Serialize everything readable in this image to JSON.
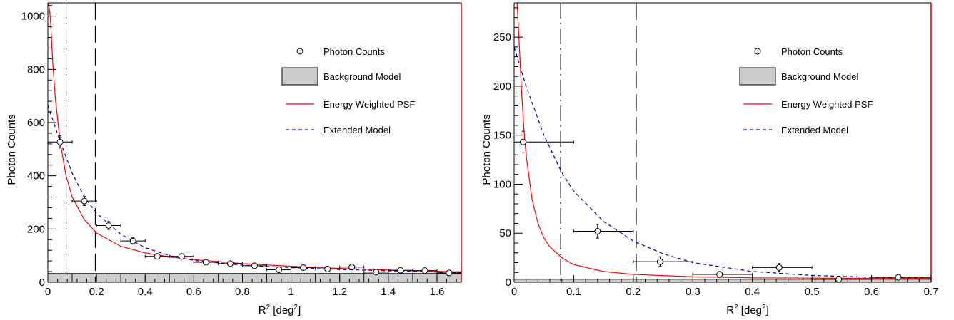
{
  "chart_data": [
    {
      "type": "scatter",
      "xlabel_base": "R",
      "xlabel_sup": "2",
      "xlabel_mid": " [deg",
      "xlabel_sup2": "2",
      "xlabel_end": "]",
      "ylabel": "Photon Counts",
      "xlim": [
        0,
        1.7
      ],
      "ylim": [
        0,
        1050
      ],
      "xticks": [
        0,
        0.2,
        0.4,
        0.6,
        0.8,
        1,
        1.2,
        1.4,
        1.6
      ],
      "xtick_labels": [
        "0",
        "0.2",
        "0.4",
        "0.6",
        "0.8",
        "1",
        "1.2",
        "1.4",
        "1.6"
      ],
      "yticks": [
        0,
        200,
        400,
        600,
        800,
        1000
      ],
      "ytick_labels": [
        "0",
        "200",
        "400",
        "600",
        "800",
        "1000"
      ],
      "legend": {
        "placement": "top-right",
        "entries": [
          "Photon Counts",
          "Background Model",
          "Energy Weighted PSF",
          "Extended Model"
        ]
      },
      "vlines": [
        {
          "x": 0.075,
          "style": "dash-dot"
        },
        {
          "x": 0.195,
          "style": "long-dash"
        }
      ],
      "photon_counts": [
        {
          "x": 0.05,
          "y": 527,
          "xerr": 0.05,
          "yerr": 23
        },
        {
          "x": 0.15,
          "y": 305,
          "xerr": 0.05,
          "yerr": 17
        },
        {
          "x": 0.25,
          "y": 213,
          "xerr": 0.05,
          "yerr": 15
        },
        {
          "x": 0.35,
          "y": 155,
          "xerr": 0.05,
          "yerr": 12
        },
        {
          "x": 0.45,
          "y": 97,
          "xerr": 0.05,
          "yerr": 10
        },
        {
          "x": 0.55,
          "y": 97,
          "xerr": 0.05,
          "yerr": 10
        },
        {
          "x": 0.65,
          "y": 75,
          "xerr": 0.05,
          "yerr": 9
        },
        {
          "x": 0.75,
          "y": 70,
          "xerr": 0.05,
          "yerr": 8
        },
        {
          "x": 0.85,
          "y": 62,
          "xerr": 0.05,
          "yerr": 8
        },
        {
          "x": 0.95,
          "y": 47,
          "xerr": 0.05,
          "yerr": 7
        },
        {
          "x": 1.05,
          "y": 55,
          "xerr": 0.05,
          "yerr": 7
        },
        {
          "x": 1.15,
          "y": 50,
          "xerr": 0.05,
          "yerr": 7
        },
        {
          "x": 1.25,
          "y": 57,
          "xerr": 0.05,
          "yerr": 8
        },
        {
          "x": 1.35,
          "y": 38,
          "xerr": 0.05,
          "yerr": 6
        },
        {
          "x": 1.45,
          "y": 45,
          "xerr": 0.05,
          "yerr": 7
        },
        {
          "x": 1.55,
          "y": 44,
          "xerr": 0.05,
          "yerr": 7
        },
        {
          "x": 1.65,
          "y": 35,
          "xerr": 0.05,
          "yerr": 6
        }
      ],
      "background_model": {
        "bin_edges": [
          0,
          0.1,
          0.2,
          0.3,
          0.4,
          0.5,
          0.6,
          0.7,
          0.8,
          0.9,
          1.0,
          1.1,
          1.2,
          1.3,
          1.4,
          1.5,
          1.6,
          1.7
        ],
        "values": [
          33,
          33,
          33,
          33,
          33,
          33,
          33,
          33,
          33,
          33,
          33,
          33,
          33,
          33,
          33,
          33,
          33
        ]
      },
      "energy_weighted_psf": {
        "x": [
          0.003,
          0.01,
          0.02,
          0.03,
          0.05,
          0.075,
          0.1,
          0.15,
          0.2,
          0.3,
          0.4,
          0.5,
          0.6,
          0.8,
          1.0,
          1.2,
          1.4,
          1.6,
          1.7
        ],
        "y": [
          1050,
          1000,
          830,
          700,
          530,
          400,
          320,
          235,
          185,
          135,
          110,
          95,
          85,
          70,
          60,
          52,
          46,
          41,
          39
        ]
      },
      "extended_model": {
        "x": [
          0,
          0.05,
          0.1,
          0.15,
          0.2,
          0.3,
          0.4,
          0.5,
          0.6,
          0.8,
          1.0,
          1.2,
          1.4,
          1.6,
          1.7
        ],
        "y": [
          665,
          530,
          410,
          320,
          260,
          180,
          130,
          100,
          82,
          64,
          55,
          48,
          43,
          38,
          36
        ]
      }
    },
    {
      "type": "scatter",
      "xlabel_base": "R",
      "xlabel_sup": "2",
      "xlabel_mid": " [deg",
      "xlabel_sup2": "2",
      "xlabel_end": "]",
      "ylabel": "Photon Counts",
      "xlim": [
        0,
        0.7
      ],
      "ylim": [
        0,
        285
      ],
      "xticks": [
        0,
        0.1,
        0.2,
        0.3,
        0.4,
        0.5,
        0.6,
        0.7
      ],
      "xtick_labels": [
        "0",
        "0.1",
        "0.2",
        "0.3",
        "0.4",
        "0.5",
        "0.6",
        "0.7"
      ],
      "yticks": [
        0,
        50,
        100,
        150,
        200,
        250
      ],
      "ytick_labels": [
        "0",
        "50",
        "100",
        "150",
        "200",
        "250"
      ],
      "legend": {
        "placement": "top-right",
        "entries": [
          "Photon Counts",
          "Background Model",
          "Energy Weighted PSF",
          "Extended Model"
        ]
      },
      "vlines": [
        {
          "x": 0.078,
          "style": "dash-dot"
        },
        {
          "x": 0.205,
          "style": "long-dash"
        }
      ],
      "photon_counts": [
        {
          "x": 0.015,
          "y": 143,
          "xerr_lo": 0.015,
          "xerr_hi": 0.085,
          "yerr": 11
        },
        {
          "x": 0.14,
          "y": 52,
          "xerr_lo": 0.04,
          "xerr_hi": 0.06,
          "yerr": 7
        },
        {
          "x": 0.245,
          "y": 21,
          "xerr_lo": 0.045,
          "xerr_hi": 0.055,
          "yerr": 5
        },
        {
          "x": 0.345,
          "y": 8,
          "xerr_lo": 0.045,
          "xerr_hi": 0.055,
          "yerr": 3
        },
        {
          "x": 0.445,
          "y": 15,
          "xerr_lo": 0.045,
          "xerr_hi": 0.055,
          "yerr": 4
        },
        {
          "x": 0.545,
          "y": 3,
          "xerr_lo": 0.045,
          "xerr_hi": 0.055,
          "yerr": 2
        },
        {
          "x": 0.645,
          "y": 5,
          "xerr_lo": 0.045,
          "xerr_hi": 0.055,
          "yerr": 2
        }
      ],
      "background_model": {
        "bin_edges": [
          0,
          0.1,
          0.2,
          0.3,
          0.4,
          0.5,
          0.6,
          0.7
        ],
        "values": [
          3,
          3,
          3,
          3,
          3,
          3,
          3
        ]
      },
      "energy_weighted_psf": {
        "x": [
          0.005,
          0.008,
          0.012,
          0.016,
          0.02,
          0.03,
          0.04,
          0.05,
          0.06,
          0.08,
          0.1,
          0.15,
          0.2,
          0.3,
          0.4,
          0.5,
          0.6,
          0.7
        ],
        "y": [
          285,
          250,
          200,
          160,
          130,
          85,
          60,
          45,
          36,
          25,
          18,
          11,
          8,
          5.5,
          4.5,
          4.2,
          4,
          4
        ]
      },
      "extended_model": {
        "x": [
          0,
          0.02,
          0.05,
          0.08,
          0.1,
          0.15,
          0.2,
          0.25,
          0.3,
          0.4,
          0.5,
          0.6,
          0.7
        ],
        "y": [
          240,
          200,
          150,
          112,
          93,
          62,
          42,
          29,
          20,
          11,
          7,
          5,
          4
        ]
      }
    }
  ],
  "colors": {
    "axes": "#000000",
    "frame_right": "#cc0000",
    "psf": "#ff0000",
    "extended": "#0000cc",
    "background_fill": "#cccccc",
    "background_edge": "#000000"
  }
}
